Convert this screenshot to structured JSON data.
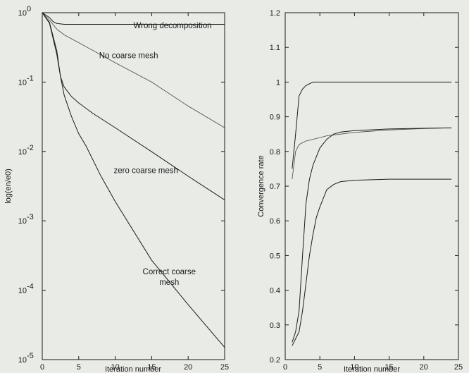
{
  "chart_data": [
    {
      "type": "line",
      "yscale": "log",
      "xlabel": "Iteration number",
      "ylabel": "log(en/e0)",
      "xlim": [
        0,
        25
      ],
      "ylim": [
        1e-05,
        1
      ],
      "xticks": [
        "0",
        "5",
        "10",
        "15",
        "20",
        "25"
      ],
      "yticks": [
        {
          "value": 1,
          "base": "10",
          "exp": "0"
        },
        {
          "value": 0.1,
          "base": "10",
          "exp": "-1"
        },
        {
          "value": 0.01,
          "base": "10",
          "exp": "-2"
        },
        {
          "value": 0.001,
          "base": "10",
          "exp": "-3"
        },
        {
          "value": 0.0001,
          "base": "10",
          "exp": "-4"
        },
        {
          "value": 1e-05,
          "base": "10",
          "exp": "-5"
        }
      ],
      "grid": false,
      "series": [
        {
          "name": "Wrong decomposition",
          "x": [
            0,
            1,
            1.5,
            2,
            3,
            5,
            10,
            15,
            20,
            25
          ],
          "y": [
            1.0,
            0.85,
            0.74,
            0.7,
            0.68,
            0.68,
            0.68,
            0.68,
            0.68,
            0.68
          ]
        },
        {
          "name": "No coarse mesh",
          "x": [
            0,
            1,
            2,
            3,
            5,
            10,
            15,
            20,
            25
          ],
          "y": [
            1.0,
            0.78,
            0.58,
            0.48,
            0.37,
            0.19,
            0.1,
            0.045,
            0.022
          ]
        },
        {
          "name": "zero coarse mesh",
          "x": [
            0,
            1,
            2,
            2.5,
            3,
            4,
            5,
            7,
            10,
            15,
            20,
            25
          ],
          "y": [
            1.0,
            0.72,
            0.28,
            0.12,
            0.085,
            0.062,
            0.05,
            0.035,
            0.022,
            0.0099,
            0.0044,
            0.002
          ]
        },
        {
          "name": "Correct coarse mesh",
          "x": [
            0,
            1,
            2,
            2.5,
            3,
            4,
            5,
            6,
            8,
            10,
            15,
            20,
            25
          ],
          "y": [
            1.0,
            0.7,
            0.25,
            0.12,
            0.065,
            0.032,
            0.018,
            0.012,
            0.0045,
            0.0019,
            0.00027,
            6.2e-05,
            1.5e-05
          ]
        }
      ],
      "annotations": [
        {
          "lines": [
            "Wrong decomposition"
          ],
          "x": 12.5,
          "y": 0.6,
          "anchor": "start"
        },
        {
          "lines": [
            "No coarse mesh"
          ],
          "x": 7.8,
          "y": 0.22,
          "anchor": "start"
        },
        {
          "lines": [
            "zero coarse mesh"
          ],
          "x": 9.8,
          "y": 0.0049,
          "anchor": "start"
        },
        {
          "lines": [
            "Correct coarse",
            "mesh"
          ],
          "x": 17.4,
          "y": 0.00017,
          "anchor": "middle"
        }
      ]
    },
    {
      "type": "line",
      "xlabel": "Iteration number",
      "ylabel": "Convergence rate",
      "xlim": [
        0,
        25
      ],
      "ylim": [
        0.2,
        1.2
      ],
      "xticks": [
        "0",
        "5",
        "10",
        "15",
        "20",
        "25"
      ],
      "yticks": [
        "0.2",
        "0.3",
        "0.4",
        "0.5",
        "0.6",
        "0.7",
        "0.8",
        "0.9",
        "1",
        "1.1",
        "1.2"
      ],
      "grid": false,
      "series": [
        {
          "x": [
            1,
            1.5,
            2,
            2.5,
            3,
            3.5,
            4,
            5,
            6,
            10,
            15,
            20,
            24
          ],
          "y": [
            0.75,
            0.85,
            0.96,
            0.98,
            0.99,
            0.995,
            1.0,
            1.0,
            1.0,
            1.0,
            1.0,
            1.0,
            1.0
          ]
        },
        {
          "x": [
            1,
            1.5,
            2,
            3,
            4,
            5,
            6,
            8,
            10,
            15,
            20,
            24
          ],
          "y": [
            0.72,
            0.8,
            0.82,
            0.83,
            0.835,
            0.84,
            0.845,
            0.85,
            0.855,
            0.862,
            0.866,
            0.868
          ]
        },
        {
          "x": [
            1,
            1.5,
            2,
            2.5,
            3,
            3.5,
            4,
            5,
            6,
            7,
            8,
            10,
            15,
            20,
            24
          ],
          "y": [
            0.25,
            0.28,
            0.34,
            0.5,
            0.65,
            0.72,
            0.76,
            0.81,
            0.835,
            0.85,
            0.856,
            0.86,
            0.865,
            0.867,
            0.868
          ]
        },
        {
          "x": [
            1,
            2,
            2.5,
            3,
            3.5,
            4,
            4.5,
            5,
            6,
            7,
            8,
            10,
            15,
            20,
            24
          ],
          "y": [
            0.24,
            0.28,
            0.34,
            0.42,
            0.5,
            0.56,
            0.61,
            0.64,
            0.69,
            0.705,
            0.713,
            0.717,
            0.72,
            0.72,
            0.72
          ]
        }
      ]
    }
  ]
}
